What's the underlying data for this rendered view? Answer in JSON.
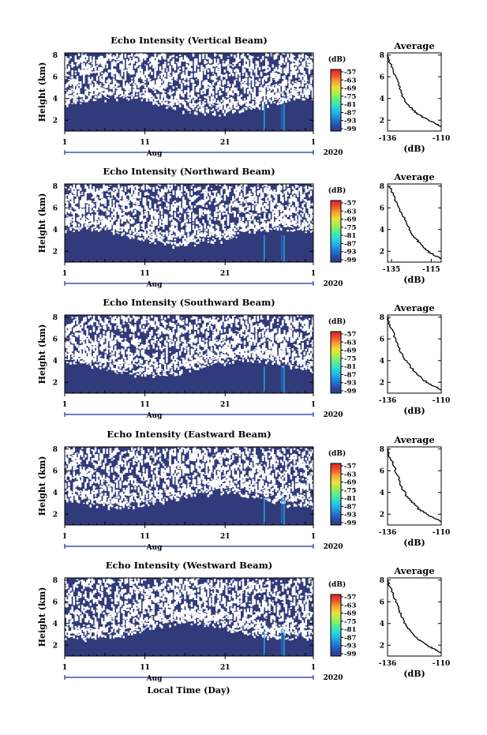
{
  "figure": {
    "xlabel": "Local Time (Day)",
    "month_label": "Aug",
    "year_label": "2020"
  },
  "chart_data": [
    {
      "type": "heatmap",
      "title": "Echo Intensity (Vertical Beam)",
      "ylabel": "Height (km)",
      "xlabel": "Local Time (Day)",
      "x_ticks": [
        "1",
        "11",
        "21",
        "1"
      ],
      "x_range": [
        "2020-08-01",
        "2020-09-01"
      ],
      "y_ticks": [
        2,
        4,
        6,
        8
      ],
      "ylim": [
        1,
        8.2
      ],
      "colorbar": {
        "unit": "(dB)",
        "ticks": [
          -57,
          -63,
          -69,
          -75,
          -81,
          -87,
          -93,
          -99
        ]
      },
      "grid": false
    },
    {
      "type": "line",
      "title": "Average",
      "xlabel": "(dB)",
      "x_ticks": [
        -136,
        -110
      ],
      "xlim": [
        -136,
        -110
      ],
      "y_ticks": [
        2,
        4,
        6,
        8
      ],
      "ylim": [
        1,
        8.2
      ],
      "series": [
        {
          "x": [
            -136,
            -135,
            -133,
            -131,
            -129,
            -127,
            -124,
            -121,
            -117,
            -113,
            -110
          ],
          "y": [
            8.0,
            7.4,
            6.5,
            5.4,
            4.4,
            3.6,
            3.0,
            2.5,
            2.1,
            1.7,
            1.4
          ]
        }
      ]
    },
    {
      "type": "heatmap",
      "title": "Echo Intensity (Northward Beam)",
      "ylabel": "Height (km)",
      "xlabel": "Local Time (Day)",
      "x_ticks": [
        "1",
        "11",
        "21",
        "1"
      ],
      "x_range": [
        "2020-08-01",
        "2020-09-01"
      ],
      "y_ticks": [
        2,
        4,
        6,
        8
      ],
      "ylim": [
        1,
        8.2
      ],
      "colorbar": {
        "unit": "(dB)",
        "ticks": [
          -57,
          -63,
          -69,
          -75,
          -81,
          -87,
          -93,
          -99
        ]
      },
      "grid": false
    },
    {
      "type": "line",
      "title": "Average",
      "xlabel": "(dB)",
      "x_ticks": [
        -135,
        -115
      ],
      "xlim": [
        -137,
        -110
      ],
      "y_ticks": [
        2,
        4,
        6,
        8
      ],
      "ylim": [
        1,
        8.2
      ],
      "series": [
        {
          "x": [
            -136,
            -134,
            -132,
            -129,
            -127,
            -125,
            -122,
            -119,
            -116,
            -113,
            -110
          ],
          "y": [
            8.0,
            7.2,
            6.2,
            5.2,
            4.4,
            3.6,
            3.0,
            2.4,
            1.9,
            1.6,
            1.3
          ]
        }
      ]
    },
    {
      "type": "heatmap",
      "title": "Echo Intensity (Southward Beam)",
      "ylabel": "Height (km)",
      "xlabel": "Local Time (Day)",
      "x_ticks": [
        "1",
        "11",
        "21",
        "1"
      ],
      "x_range": [
        "2020-08-01",
        "2020-09-01"
      ],
      "y_ticks": [
        2,
        4,
        6,
        8
      ],
      "ylim": [
        1,
        8.2
      ],
      "colorbar": {
        "unit": "(dB)",
        "ticks": [
          -57,
          -63,
          -69,
          -75,
          -81,
          -87,
          -93,
          -99
        ]
      },
      "grid": false
    },
    {
      "type": "line",
      "title": "Average",
      "xlabel": "(dB)",
      "x_ticks": [
        -136,
        -110
      ],
      "xlim": [
        -136,
        -110
      ],
      "y_ticks": [
        2,
        4,
        6,
        8
      ],
      "ylim": [
        1,
        8.2
      ],
      "series": [
        {
          "x": [
            -136,
            -135,
            -133,
            -131,
            -129,
            -126,
            -123,
            -120,
            -117,
            -113,
            -110
          ],
          "y": [
            8.0,
            7.3,
            6.4,
            5.4,
            4.5,
            3.7,
            3.0,
            2.5,
            2.0,
            1.6,
            1.3
          ]
        }
      ]
    },
    {
      "type": "heatmap",
      "title": "Echo Intensity (Eastward Beam)",
      "ylabel": "Height (km)",
      "xlabel": "Local Time (Day)",
      "x_ticks": [
        "1",
        "11",
        "21",
        "1"
      ],
      "x_range": [
        "2020-08-01",
        "2020-09-01"
      ],
      "y_ticks": [
        2,
        4,
        6,
        8
      ],
      "ylim": [
        1,
        8.2
      ],
      "colorbar": {
        "unit": "(dB)",
        "ticks": [
          -57,
          -63,
          -69,
          -75,
          -81,
          -87,
          -93,
          -99
        ]
      },
      "grid": false
    },
    {
      "type": "line",
      "title": "Average",
      "xlabel": "(dB)",
      "x_ticks": [
        -136,
        -110
      ],
      "xlim": [
        -136,
        -110
      ],
      "y_ticks": [
        2,
        4,
        6,
        8
      ],
      "ylim": [
        1,
        8.2
      ],
      "series": [
        {
          "x": [
            -136,
            -135,
            -133,
            -131,
            -129,
            -127,
            -124,
            -121,
            -117,
            -113,
            -110
          ],
          "y": [
            8.0,
            7.3,
            6.5,
            5.5,
            4.5,
            3.7,
            3.1,
            2.5,
            2.0,
            1.6,
            1.3
          ]
        }
      ]
    },
    {
      "type": "heatmap",
      "title": "Echo Intensity (Westward Beam)",
      "ylabel": "Height (km)",
      "xlabel": "Local Time (Day)",
      "x_ticks": [
        "1",
        "11",
        "21",
        "1"
      ],
      "x_range": [
        "2020-08-01",
        "2020-09-01"
      ],
      "y_ticks": [
        2,
        4,
        6,
        8
      ],
      "ylim": [
        1,
        8.2
      ],
      "colorbar": {
        "unit": "(dB)",
        "ticks": [
          -57,
          -63,
          -69,
          -75,
          -81,
          -87,
          -93,
          -99
        ]
      },
      "grid": false
    },
    {
      "type": "line",
      "title": "Average",
      "xlabel": "(dB)",
      "x_ticks": [
        -136,
        -110
      ],
      "xlim": [
        -136,
        -110
      ],
      "y_ticks": [
        2,
        4,
        6,
        8
      ],
      "ylim": [
        1,
        8.2
      ],
      "series": [
        {
          "x": [
            -136,
            -135,
            -133,
            -131,
            -129,
            -127,
            -124,
            -121,
            -117,
            -113,
            -110
          ],
          "y": [
            8.0,
            7.4,
            6.5,
            5.5,
            4.6,
            3.8,
            3.1,
            2.5,
            2.0,
            1.6,
            1.3
          ]
        }
      ]
    }
  ],
  "colors": {
    "background_echo": "#313a7a",
    "no_data": "#ffffff",
    "colormap": [
      "#2e3a80",
      "#2a4fb0",
      "#1f7fd6",
      "#22b5e6",
      "#30dcd0",
      "#5aec8e",
      "#a6ef52",
      "#e8e23a",
      "#f7a632",
      "#f0512d",
      "#d8222a"
    ]
  }
}
